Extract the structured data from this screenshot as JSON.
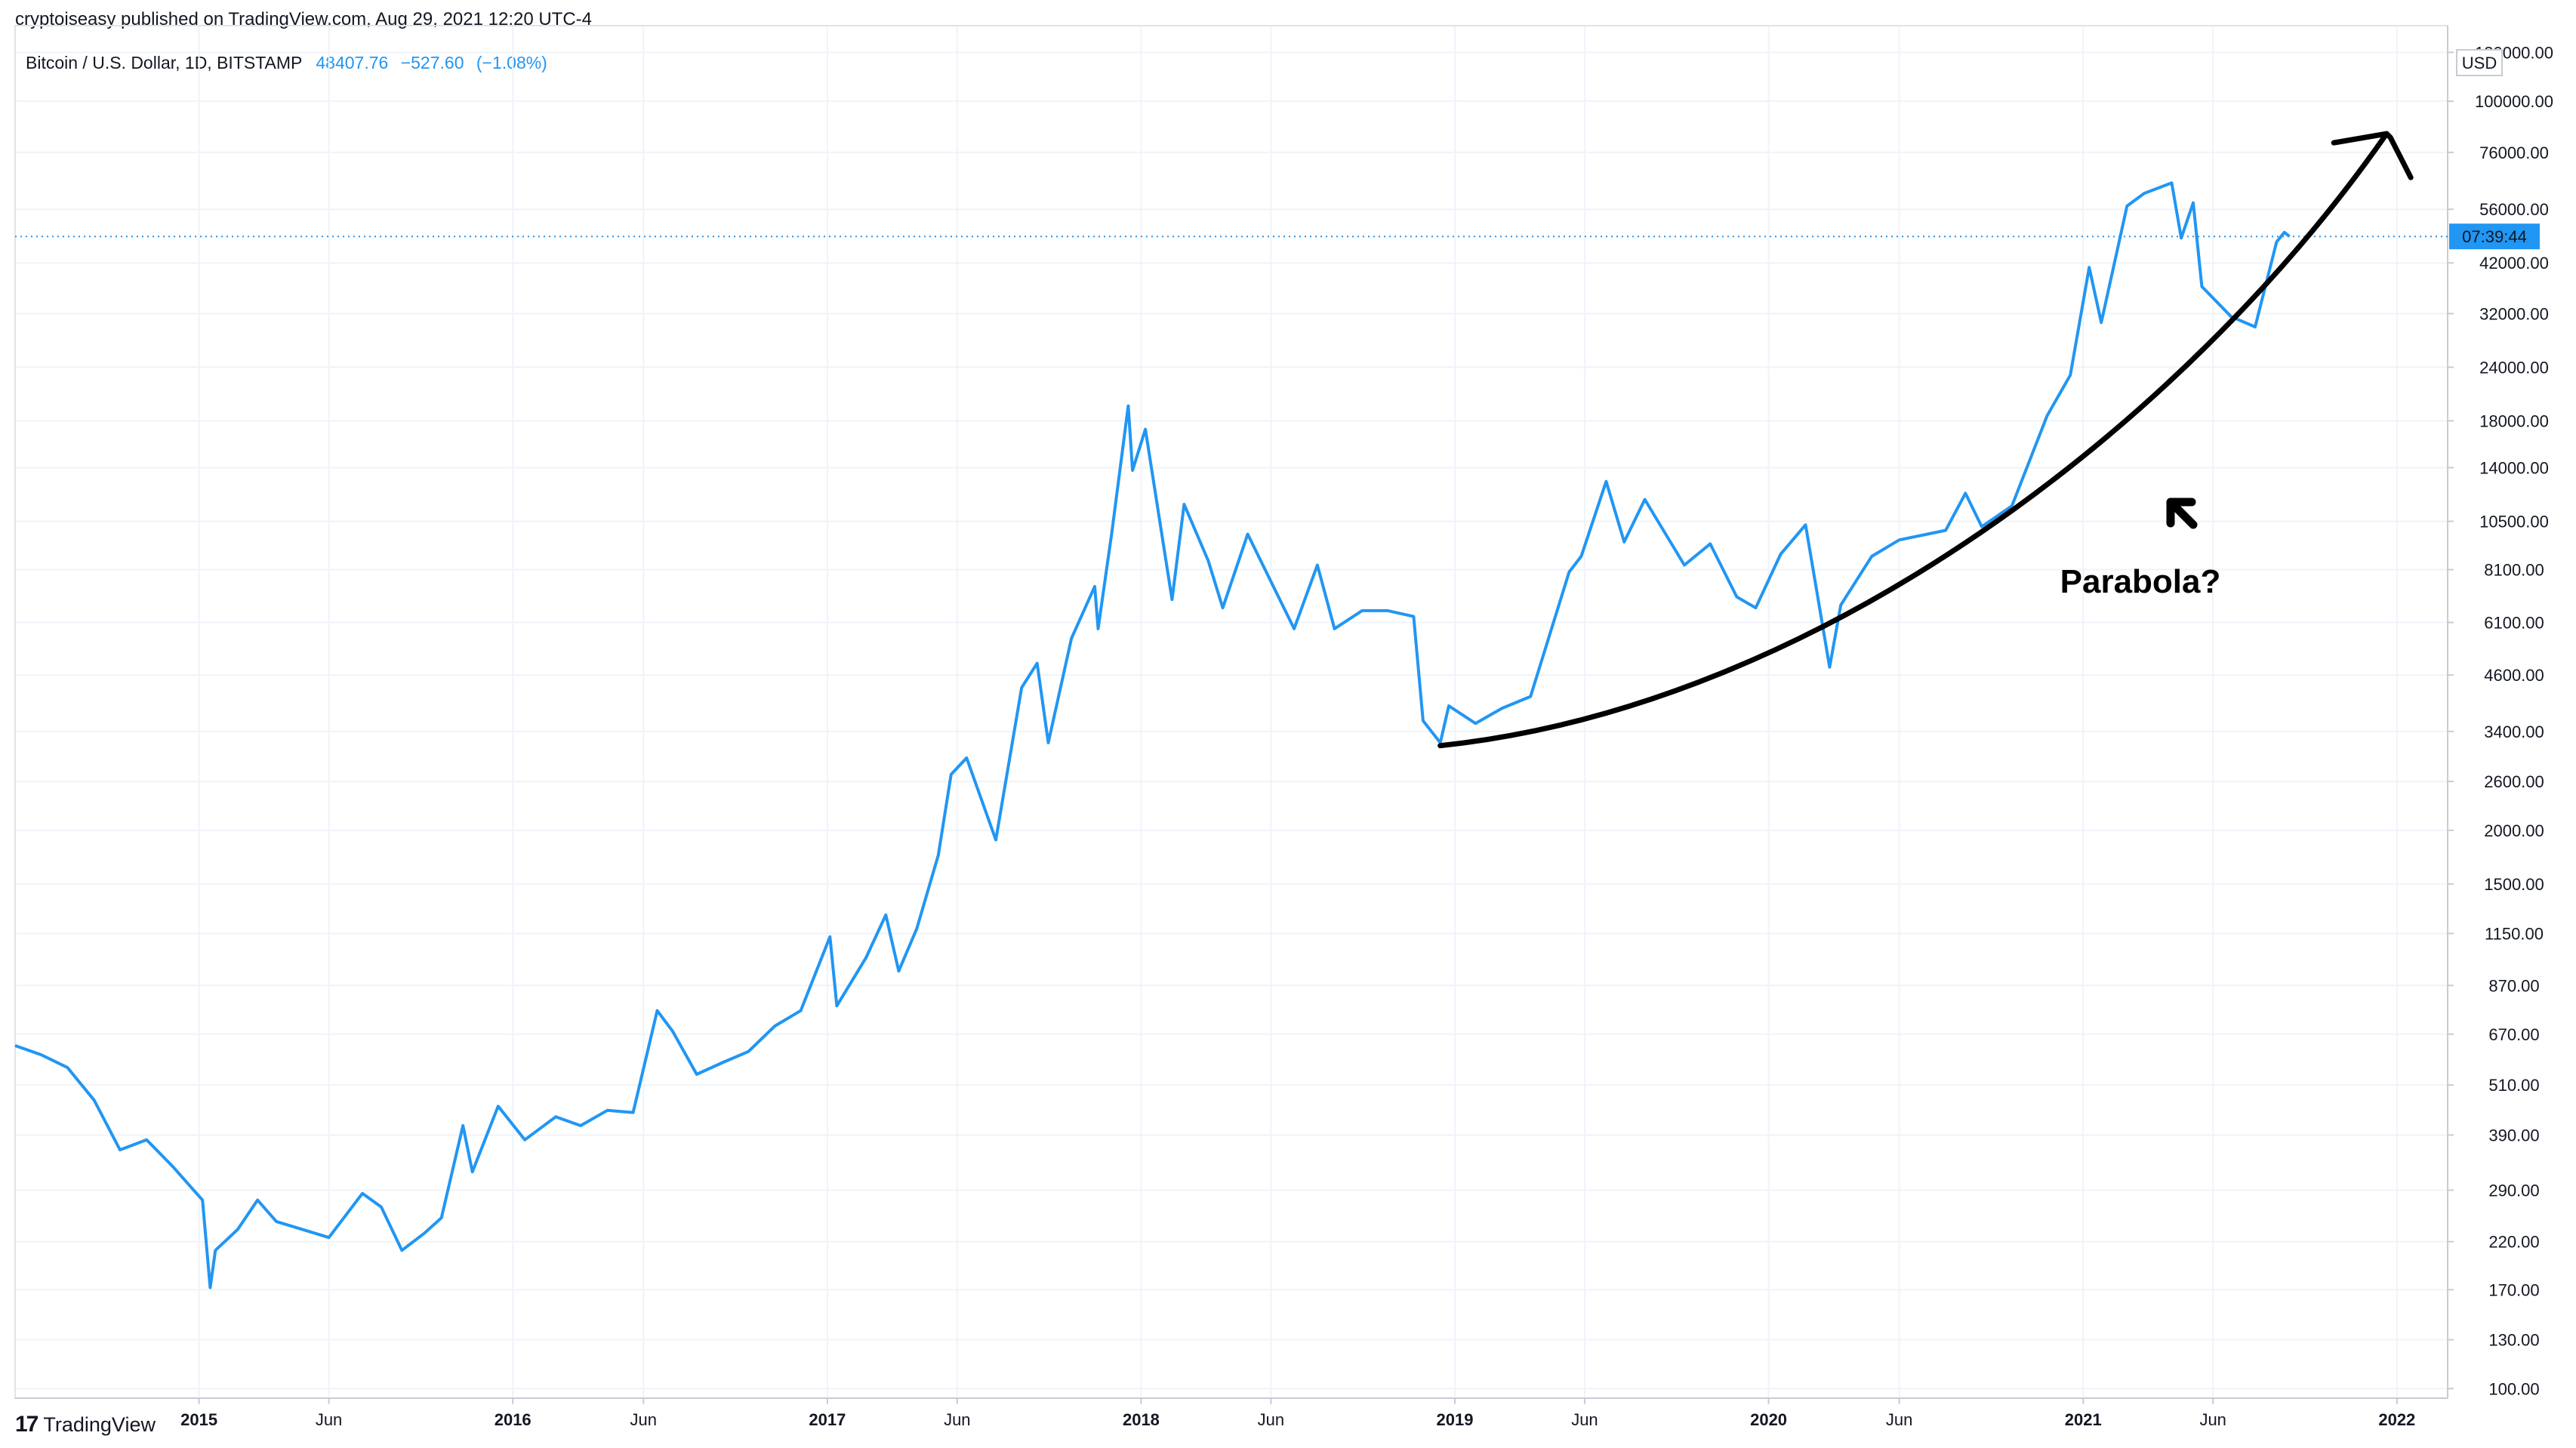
{
  "header": {
    "published_by": "cryptoiseasy published on TradingView.com, Aug 29, 2021 12:20 UTC-4"
  },
  "legend": {
    "symbol": "Bitcoin / U.S. Dollar, 1D, BITSTAMP",
    "last_price": "48407.76",
    "change": "−527.60",
    "change_pct": "(−1.08%)"
  },
  "price_axis": {
    "currency": "USD",
    "countdown": "07:39:44",
    "countdown_color": "#2196f3"
  },
  "annotation": {
    "label": "Parabola?"
  },
  "footer": {
    "brand": "TradingView"
  },
  "colors": {
    "series": "#2196f3",
    "annotation": "#000000",
    "grid": "#f0f3fa"
  },
  "chart_data": {
    "type": "line",
    "title": "Bitcoin / U.S. Dollar, 1D, BITSTAMP",
    "scale": "log",
    "ylim": [
      95,
      150000
    ],
    "xlim": [
      "2014-06-01",
      "2022-03-01"
    ],
    "grid": true,
    "y_ticks": [
      {
        "value": 100,
        "label": "100.00"
      },
      {
        "value": 130,
        "label": "130.00"
      },
      {
        "value": 170,
        "label": "170.00"
      },
      {
        "value": 220,
        "label": "220.00"
      },
      {
        "value": 290,
        "label": "290.00"
      },
      {
        "value": 390,
        "label": "390.00"
      },
      {
        "value": 510,
        "label": "510.00"
      },
      {
        "value": 670,
        "label": "670.00"
      },
      {
        "value": 870,
        "label": "870.00"
      },
      {
        "value": 1150,
        "label": "1150.00"
      },
      {
        "value": 1500,
        "label": "1500.00"
      },
      {
        "value": 2000,
        "label": "2000.00"
      },
      {
        "value": 2600,
        "label": "2600.00"
      },
      {
        "value": 3400,
        "label": "3400.00"
      },
      {
        "value": 4600,
        "label": "4600.00"
      },
      {
        "value": 6100,
        "label": "6100.00"
      },
      {
        "value": 8100,
        "label": "8100.00"
      },
      {
        "value": 10500,
        "label": "10500.00"
      },
      {
        "value": 14000,
        "label": "14000.00"
      },
      {
        "value": 18000,
        "label": "18000.00"
      },
      {
        "value": 24000,
        "label": "24000.00"
      },
      {
        "value": 32000,
        "label": "32000.00"
      },
      {
        "value": 42000,
        "label": "42000.00"
      },
      {
        "value": 56000,
        "label": "56000.00"
      },
      {
        "value": 76000,
        "label": "76000.00"
      },
      {
        "value": 100000,
        "label": "100000.00"
      },
      {
        "value": 130000,
        "label": "130000.00"
      }
    ],
    "x_ticks": [
      {
        "date": "2015-01-01",
        "label": "2015",
        "major": true
      },
      {
        "date": "2015-06-01",
        "label": "Jun",
        "major": false
      },
      {
        "date": "2016-01-01",
        "label": "2016",
        "major": true
      },
      {
        "date": "2016-06-01",
        "label": "Jun",
        "major": false
      },
      {
        "date": "2017-01-01",
        "label": "2017",
        "major": true
      },
      {
        "date": "2017-06-01",
        "label": "Jun",
        "major": false
      },
      {
        "date": "2018-01-01",
        "label": "2018",
        "major": true
      },
      {
        "date": "2018-06-01",
        "label": "Jun",
        "major": false
      },
      {
        "date": "2019-01-01",
        "label": "2019",
        "major": true
      },
      {
        "date": "2019-06-01",
        "label": "Jun",
        "major": false
      },
      {
        "date": "2020-01-01",
        "label": "2020",
        "major": true
      },
      {
        "date": "2020-06-01",
        "label": "Jun",
        "major": false
      },
      {
        "date": "2021-01-01",
        "label": "2021",
        "major": true
      },
      {
        "date": "2021-06-01",
        "label": "Jun",
        "major": false
      },
      {
        "date": "2022-01-01",
        "label": "2022",
        "major": true
      }
    ],
    "last_value": 48407.76,
    "series": [
      {
        "color": "#2196f3",
        "points": [
          [
            "2014-06-01",
            630
          ],
          [
            "2014-07-01",
            600
          ],
          [
            "2014-08-01",
            560
          ],
          [
            "2014-09-01",
            470
          ],
          [
            "2014-10-01",
            360
          ],
          [
            "2014-11-01",
            380
          ],
          [
            "2014-12-01",
            330
          ],
          [
            "2015-01-05",
            275
          ],
          [
            "2015-01-14",
            172
          ],
          [
            "2015-01-20",
            210
          ],
          [
            "2015-02-15",
            235
          ],
          [
            "2015-03-10",
            275
          ],
          [
            "2015-04-01",
            245
          ],
          [
            "2015-05-01",
            235
          ],
          [
            "2015-06-01",
            225
          ],
          [
            "2015-07-10",
            285
          ],
          [
            "2015-08-01",
            265
          ],
          [
            "2015-08-25",
            210
          ],
          [
            "2015-09-20",
            230
          ],
          [
            "2015-10-10",
            250
          ],
          [
            "2015-11-04",
            410
          ],
          [
            "2015-11-15",
            320
          ],
          [
            "2015-12-15",
            455
          ],
          [
            "2016-01-15",
            380
          ],
          [
            "2016-02-20",
            430
          ],
          [
            "2016-03-20",
            410
          ],
          [
            "2016-04-20",
            445
          ],
          [
            "2016-05-20",
            440
          ],
          [
            "2016-06-17",
            760
          ],
          [
            "2016-07-05",
            680
          ],
          [
            "2016-08-02",
            540
          ],
          [
            "2016-09-01",
            575
          ],
          [
            "2016-10-01",
            610
          ],
          [
            "2016-11-01",
            700
          ],
          [
            "2016-12-01",
            760
          ],
          [
            "2017-01-04",
            1130
          ],
          [
            "2017-01-12",
            780
          ],
          [
            "2017-02-15",
            1010
          ],
          [
            "2017-03-10",
            1270
          ],
          [
            "2017-03-25",
            940
          ],
          [
            "2017-04-15",
            1180
          ],
          [
            "2017-05-10",
            1750
          ],
          [
            "2017-05-25",
            2700
          ],
          [
            "2017-06-12",
            2950
          ],
          [
            "2017-07-16",
            1900
          ],
          [
            "2017-08-15",
            4300
          ],
          [
            "2017-09-02",
            4900
          ],
          [
            "2017-09-15",
            3200
          ],
          [
            "2017-10-12",
            5600
          ],
          [
            "2017-11-08",
            7400
          ],
          [
            "2017-11-12",
            5900
          ],
          [
            "2017-11-28",
            9900
          ],
          [
            "2017-12-17",
            19500
          ],
          [
            "2017-12-22",
            13800
          ],
          [
            "2018-01-06",
            17200
          ],
          [
            "2018-02-06",
            6900
          ],
          [
            "2018-02-20",
            11500
          ],
          [
            "2018-03-20",
            8500
          ],
          [
            "2018-04-06",
            6600
          ],
          [
            "2018-05-05",
            9800
          ],
          [
            "2018-06-28",
            5900
          ],
          [
            "2018-07-25",
            8300
          ],
          [
            "2018-08-14",
            5900
          ],
          [
            "2018-09-15",
            6500
          ],
          [
            "2018-10-15",
            6500
          ],
          [
            "2018-11-14",
            6300
          ],
          [
            "2018-11-25",
            3600
          ],
          [
            "2018-12-15",
            3200
          ],
          [
            "2018-12-25",
            3900
          ],
          [
            "2019-01-25",
            3550
          ],
          [
            "2019-02-25",
            3850
          ],
          [
            "2019-03-30",
            4100
          ],
          [
            "2019-05-14",
            8000
          ],
          [
            "2019-05-28",
            8700
          ],
          [
            "2019-06-26",
            13000
          ],
          [
            "2019-07-17",
            9400
          ],
          [
            "2019-08-10",
            11800
          ],
          [
            "2019-09-25",
            8300
          ],
          [
            "2019-10-25",
            9300
          ],
          [
            "2019-11-25",
            7000
          ],
          [
            "2019-12-17",
            6600
          ],
          [
            "2020-01-15",
            8800
          ],
          [
            "2020-02-13",
            10300
          ],
          [
            "2020-03-12",
            4800
          ],
          [
            "2020-03-25",
            6700
          ],
          [
            "2020-04-30",
            8700
          ],
          [
            "2020-06-01",
            9500
          ],
          [
            "2020-07-25",
            10000
          ],
          [
            "2020-08-17",
            12200
          ],
          [
            "2020-09-05",
            10200
          ],
          [
            "2020-10-10",
            11400
          ],
          [
            "2020-11-20",
            18500
          ],
          [
            "2020-12-17",
            23000
          ],
          [
            "2021-01-08",
            41000
          ],
          [
            "2021-01-22",
            30500
          ],
          [
            "2021-02-21",
            57000
          ],
          [
            "2021-03-13",
            61000
          ],
          [
            "2021-04-14",
            64500
          ],
          [
            "2021-04-25",
            48000
          ],
          [
            "2021-05-09",
            58000
          ],
          [
            "2021-05-19",
            37000
          ],
          [
            "2021-06-22",
            31500
          ],
          [
            "2021-07-20",
            29800
          ],
          [
            "2021-08-14",
            47000
          ],
          [
            "2021-08-23",
            49500
          ],
          [
            "2021-08-29",
            48407
          ]
        ]
      }
    ]
  }
}
